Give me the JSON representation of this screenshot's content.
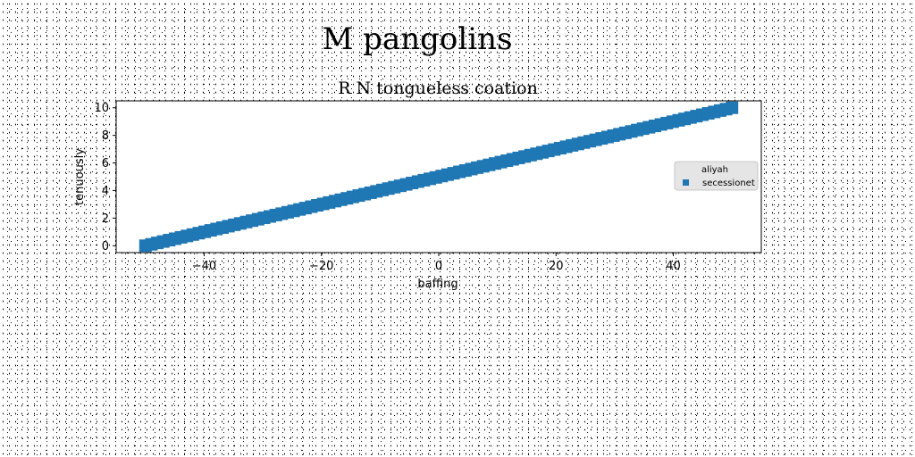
{
  "figure": {
    "suptitle": "M pangolins"
  },
  "chart_data": {
    "type": "scatter",
    "title": "R N tongueless coation",
    "xlabel": "baffing",
    "ylabel": "tenuously",
    "xlim": [
      -55,
      55
    ],
    "ylim": [
      -0.5,
      10.5
    ],
    "xticks": [
      -40,
      -20,
      0,
      20,
      40
    ],
    "xtick_labels": [
      "−40",
      "−20",
      "0",
      "20",
      "40"
    ],
    "yticks": [
      0,
      2,
      4,
      6,
      8,
      10
    ],
    "ytick_labels": [
      "0",
      "2",
      "4",
      "6",
      "8",
      "10"
    ],
    "grid": false,
    "legend_position": "center-right",
    "legend": {
      "title": "aliyah",
      "entries": [
        "secessionet"
      ]
    },
    "series": [
      {
        "name": "secessionet",
        "marker": "square",
        "color": "#1f77b4",
        "x_range": [
          -50,
          50
        ],
        "y_range": [
          0,
          10
        ],
        "n_points": 100
      }
    ]
  }
}
